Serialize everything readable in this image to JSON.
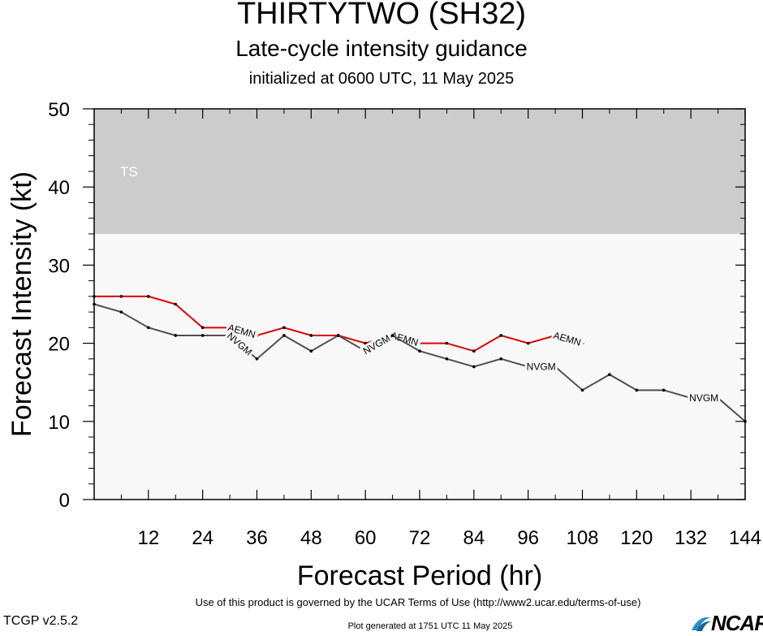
{
  "header": {
    "title": "THIRTYTWO (SH32)",
    "subtitle": "Late-cycle intensity guidance",
    "initialized": "initialized at 0600 UTC, 11 May 2025"
  },
  "footer": {
    "terms": "Use of this product is governed by the UCAR Terms of Use (http://www2.ucar.edu/terms-of-use)",
    "version": "TCGP v2.5.2",
    "generated": "Plot generated at 1751 UTC   11 May 2025",
    "logo": "NCAR"
  },
  "colors": {
    "ts_band": "#cccccc",
    "plot_bg": "#f8f8f8",
    "aemn": "#e00000",
    "nvgm": "#505050"
  },
  "chart_data": {
    "type": "line",
    "xlabel": "Forecast Period (hr)",
    "ylabel": "Forecast Intensity (kt)",
    "xlim": [
      0,
      144
    ],
    "ylim": [
      0,
      50
    ],
    "x_ticks": [
      12,
      24,
      36,
      48,
      60,
      72,
      84,
      96,
      108,
      120,
      132,
      144
    ],
    "y_ticks": [
      0,
      10,
      20,
      30,
      40,
      50
    ],
    "grid": false,
    "bands": [
      {
        "label": "TS",
        "y_from": 34,
        "y_to": 50
      }
    ],
    "series": [
      {
        "name": "AEMN",
        "x": [
          0,
          6,
          12,
          18,
          24,
          30,
          36,
          42,
          48,
          54,
          60,
          66,
          72,
          78,
          84,
          90,
          96,
          102,
          108
        ],
        "values": [
          26,
          26,
          26,
          25,
          22,
          22,
          21,
          22,
          21,
          21,
          20,
          21,
          20,
          20,
          19,
          21,
          20,
          21,
          20
        ],
        "label_positions": [
          30,
          66,
          102
        ]
      },
      {
        "name": "NVGM",
        "x": [
          0,
          6,
          12,
          18,
          24,
          30,
          36,
          42,
          48,
          54,
          60,
          66,
          72,
          78,
          84,
          90,
          96,
          102,
          108,
          114,
          120,
          126,
          132,
          138,
          144
        ],
        "values": [
          25,
          24,
          22,
          21,
          21,
          21,
          18,
          21,
          19,
          21,
          19,
          21,
          19,
          18,
          17,
          18,
          17,
          17,
          14,
          16,
          14,
          14,
          13,
          13,
          10
        ],
        "label_positions": [
          30,
          60,
          96,
          132
        ]
      }
    ]
  }
}
